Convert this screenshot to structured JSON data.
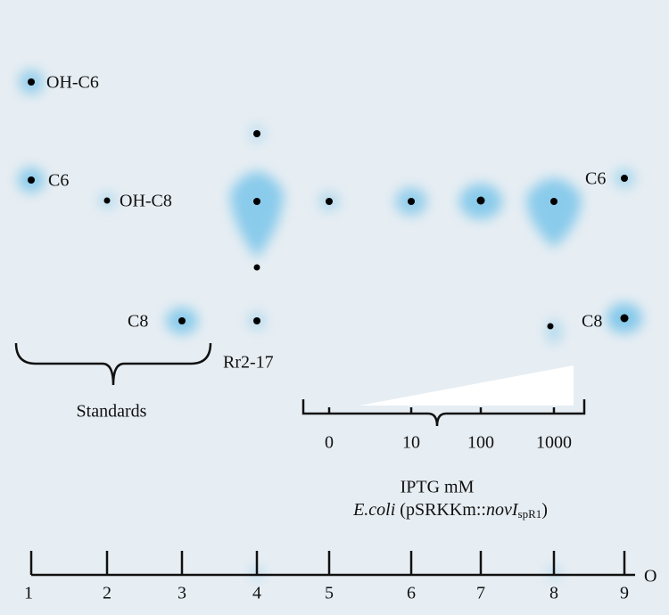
{
  "plate": {
    "standard_labels": [
      "OH-C6",
      "C6",
      "OH-C8",
      "C8"
    ],
    "sample_label": "Rr2-17",
    "standards_label": "Standards",
    "right_labels": [
      "C6",
      "C8"
    ],
    "iptg_levels": [
      "0",
      "10",
      "100",
      "1000"
    ],
    "iptg_label": "IPTG mM",
    "strain": {
      "organism": "E.coli",
      "plasmid_prefix": "(pSRKKm::",
      "gene": "novI",
      "gene_subscript": "spR1",
      "suffix": ")"
    },
    "lanes": [
      "1",
      "2",
      "3",
      "4",
      "5",
      "6",
      "7",
      "8",
      "9"
    ],
    "origin_label": "O"
  }
}
